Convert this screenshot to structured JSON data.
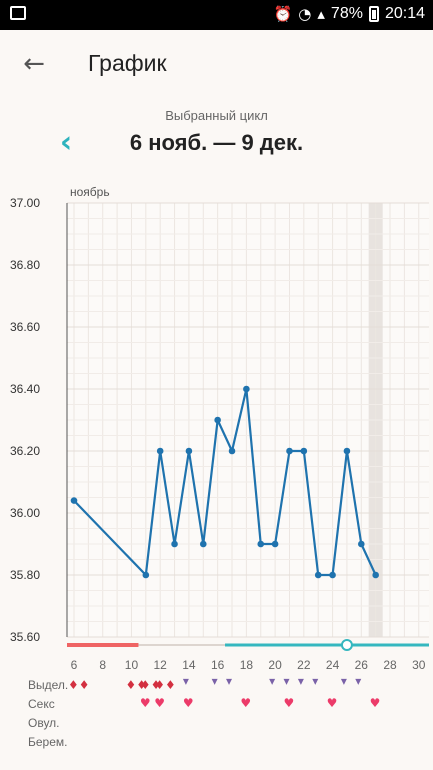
{
  "status": {
    "battery": "78%",
    "time": "20:14"
  },
  "header": {
    "title": "График",
    "back_icon": "arrow-left-icon"
  },
  "cycle": {
    "caption": "Выбранный цикл",
    "range": "6 нояб. — 9 дек.",
    "prev_icon": "chevron-left-icon"
  },
  "chart_data": {
    "type": "line",
    "month_label": "ноябрь",
    "y_ticks": [
      "37.00",
      "36.80",
      "36.60",
      "36.40",
      "36.20",
      "36.00",
      "35.80",
      "35.60"
    ],
    "ylim": [
      35.6,
      37.0
    ],
    "x_ticks": [
      "6",
      "8",
      "10",
      "12",
      "14",
      "16",
      "18",
      "20",
      "22",
      "24",
      "26",
      "28",
      "30"
    ],
    "xlim": [
      6,
      30
    ],
    "series": [
      {
        "x": [
          6,
          11,
          12,
          13,
          14,
          15,
          16,
          17,
          18,
          19,
          20,
          21,
          22,
          23,
          24,
          25,
          26,
          27
        ],
        "y": [
          36.04,
          35.8,
          36.2,
          35.9,
          36.2,
          35.9,
          36.3,
          36.2,
          36.4,
          35.9,
          35.9,
          36.2,
          36.2,
          35.8,
          35.8,
          36.2,
          35.9,
          35.8
        ]
      }
    ],
    "highlight_day": 27,
    "period_days": [
      6,
      10
    ],
    "fertile_days": [
      17,
      30
    ],
    "marker_day": 25,
    "colors": {
      "line": "#1f73ae",
      "period": "#ef6464",
      "fertile": "#35b7bf"
    }
  },
  "rows": {
    "labels": [
      "Выдел.",
      "Секс",
      "Овул.",
      "Берем."
    ],
    "bleeding_days": [
      6,
      10,
      11,
      12
    ],
    "sex_days": [
      11,
      12,
      14,
      18,
      21,
      24,
      27
    ],
    "discharge_days": [
      14,
      16,
      17,
      20,
      21,
      22,
      23,
      25,
      26
    ],
    "marks": {
      "bleeding": "♦♦",
      "sex": "♥",
      "discharge": "▾"
    }
  }
}
